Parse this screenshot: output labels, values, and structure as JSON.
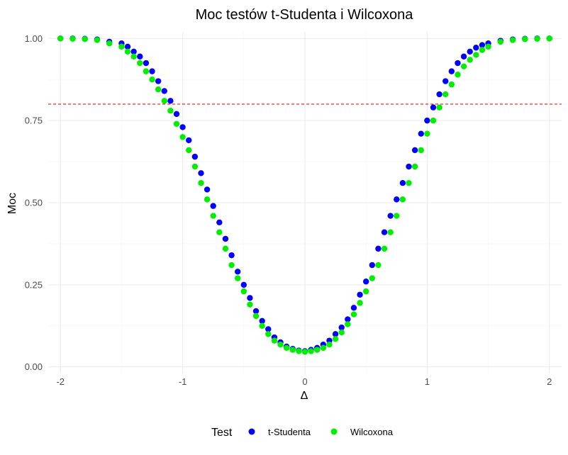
{
  "chart_data": {
    "type": "scatter",
    "title": "Moc testów t-Studenta i Wilcoxona",
    "xlabel": "Δ",
    "ylabel": "Moc",
    "xlim": [
      -2.1,
      2.1
    ],
    "ylim": [
      -0.02,
      1.02
    ],
    "x_ticks": [
      -2,
      -1,
      0,
      1,
      2
    ],
    "x_tick_labels": [
      "-2",
      "-1",
      "0",
      "1",
      "2"
    ],
    "y_ticks": [
      0,
      0.25,
      0.5,
      0.75,
      1
    ],
    "y_tick_labels": [
      "0.00",
      "0.25",
      "0.50",
      "0.75",
      "1.00"
    ],
    "grid": true,
    "reference_line": {
      "y": 0.8,
      "color": "#e31a1c",
      "style": "dashed"
    },
    "legend": {
      "title": "Test",
      "placement": "bottom"
    },
    "series": [
      {
        "name": "t-Studenta",
        "color": "#0000ff",
        "x": [
          -2.0,
          -1.9,
          -1.8,
          -1.7,
          -1.6,
          -1.5,
          -1.45,
          -1.4,
          -1.35,
          -1.3,
          -1.25,
          -1.2,
          -1.15,
          -1.1,
          -1.05,
          -1.0,
          -0.95,
          -0.9,
          -0.85,
          -0.8,
          -0.75,
          -0.7,
          -0.65,
          -0.6,
          -0.55,
          -0.5,
          -0.45,
          -0.4,
          -0.35,
          -0.3,
          -0.25,
          -0.2,
          -0.15,
          -0.1,
          -0.05,
          0.0,
          0.05,
          0.1,
          0.15,
          0.2,
          0.25,
          0.3,
          0.35,
          0.4,
          0.45,
          0.5,
          0.55,
          0.6,
          0.65,
          0.7,
          0.75,
          0.8,
          0.85,
          0.9,
          0.95,
          1.0,
          1.05,
          1.1,
          1.15,
          1.2,
          1.25,
          1.3,
          1.35,
          1.4,
          1.45,
          1.5,
          1.6,
          1.7,
          1.8,
          1.9,
          2.0
        ],
        "y": [
          1.0,
          1.0,
          0.999,
          0.997,
          0.99,
          0.985,
          0.975,
          0.96,
          0.945,
          0.925,
          0.9,
          0.87,
          0.84,
          0.81,
          0.77,
          0.73,
          0.69,
          0.64,
          0.59,
          0.54,
          0.49,
          0.44,
          0.39,
          0.34,
          0.29,
          0.25,
          0.21,
          0.17,
          0.14,
          0.115,
          0.09,
          0.075,
          0.062,
          0.055,
          0.05,
          0.048,
          0.052,
          0.058,
          0.068,
          0.08,
          0.1,
          0.12,
          0.145,
          0.18,
          0.22,
          0.26,
          0.31,
          0.36,
          0.41,
          0.46,
          0.51,
          0.56,
          0.61,
          0.66,
          0.71,
          0.75,
          0.79,
          0.83,
          0.87,
          0.9,
          0.925,
          0.945,
          0.96,
          0.972,
          0.98,
          0.985,
          0.993,
          0.997,
          0.999,
          1.0,
          1.0
        ]
      },
      {
        "name": "Wilcoxona",
        "color": "#00ee00",
        "x": [
          -2.0,
          -1.9,
          -1.8,
          -1.7,
          -1.6,
          -1.5,
          -1.45,
          -1.4,
          -1.35,
          -1.3,
          -1.25,
          -1.2,
          -1.15,
          -1.1,
          -1.05,
          -1.0,
          -0.95,
          -0.9,
          -0.85,
          -0.8,
          -0.75,
          -0.7,
          -0.65,
          -0.6,
          -0.55,
          -0.5,
          -0.45,
          -0.4,
          -0.35,
          -0.3,
          -0.25,
          -0.2,
          -0.15,
          -0.1,
          -0.05,
          0.0,
          0.05,
          0.1,
          0.15,
          0.2,
          0.25,
          0.3,
          0.35,
          0.4,
          0.45,
          0.5,
          0.55,
          0.6,
          0.65,
          0.7,
          0.75,
          0.8,
          0.85,
          0.9,
          0.95,
          1.0,
          1.05,
          1.1,
          1.15,
          1.2,
          1.25,
          1.3,
          1.35,
          1.4,
          1.45,
          1.5,
          1.6,
          1.7,
          1.8,
          1.9,
          2.0
        ],
        "y": [
          1.0,
          0.999,
          0.998,
          0.995,
          0.985,
          0.975,
          0.96,
          0.945,
          0.925,
          0.9,
          0.875,
          0.845,
          0.81,
          0.78,
          0.74,
          0.7,
          0.66,
          0.61,
          0.56,
          0.51,
          0.46,
          0.41,
          0.36,
          0.31,
          0.27,
          0.23,
          0.19,
          0.155,
          0.125,
          0.1,
          0.08,
          0.068,
          0.058,
          0.052,
          0.048,
          0.046,
          0.048,
          0.052,
          0.058,
          0.068,
          0.085,
          0.105,
          0.13,
          0.16,
          0.195,
          0.23,
          0.27,
          0.31,
          0.36,
          0.41,
          0.46,
          0.51,
          0.56,
          0.61,
          0.66,
          0.71,
          0.75,
          0.79,
          0.83,
          0.86,
          0.89,
          0.915,
          0.935,
          0.95,
          0.965,
          0.975,
          0.99,
          0.995,
          0.998,
          0.999,
          1.0
        ]
      }
    ]
  }
}
